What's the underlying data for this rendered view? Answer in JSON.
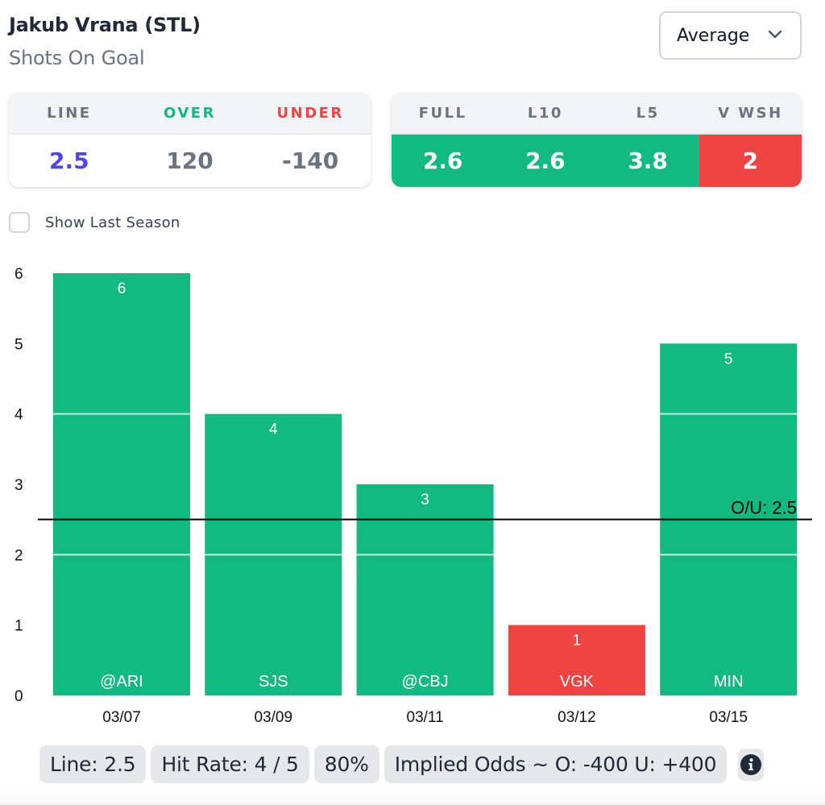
{
  "header": {
    "player": "Jakub Vrana (STL)",
    "market": "Shots On Goal"
  },
  "select": {
    "value": "Average",
    "icon": "chevron-down-icon"
  },
  "odds_card": {
    "headers": [
      "LINE",
      "OVER",
      "UNDER"
    ],
    "values": [
      "2.5",
      "120",
      "-140"
    ]
  },
  "avg_card": {
    "headers": [
      "FULL",
      "L10",
      "L5",
      "V WSH"
    ],
    "values": [
      "2.6",
      "2.6",
      "3.8",
      "2"
    ],
    "statuses": [
      "over",
      "over",
      "over",
      "under"
    ]
  },
  "toggle": {
    "label": "Show Last Season",
    "checked": false
  },
  "colors": {
    "over": "#12b981",
    "under": "#ef4444",
    "line_value": "#4f46e5"
  },
  "chart_data": {
    "type": "bar",
    "title": "",
    "xlabel": "",
    "ylabel": "",
    "categories": [
      "03/07",
      "03/09",
      "03/11",
      "03/12",
      "03/15"
    ],
    "opponents": [
      "@ARI",
      "SJS",
      "@CBJ",
      "VGK",
      "MIN"
    ],
    "values": [
      6,
      4,
      3,
      1,
      5
    ],
    "statuses": [
      "over",
      "over",
      "over",
      "under",
      "over"
    ],
    "ylim": [
      0,
      6
    ],
    "yticks": [
      0,
      1,
      2,
      3,
      4,
      5,
      6
    ],
    "gridlines": [
      2,
      4
    ],
    "reference_line": {
      "value": 2.5,
      "label": "O/U: 2.5"
    },
    "legend": "none"
  },
  "summary": {
    "line": "Line: 2.5",
    "hit_rate": "Hit Rate: 4 / 5",
    "percent": "80%",
    "implied_odds": "Implied Odds ~ O: -400 U: +400",
    "info_icon": "info-icon"
  }
}
